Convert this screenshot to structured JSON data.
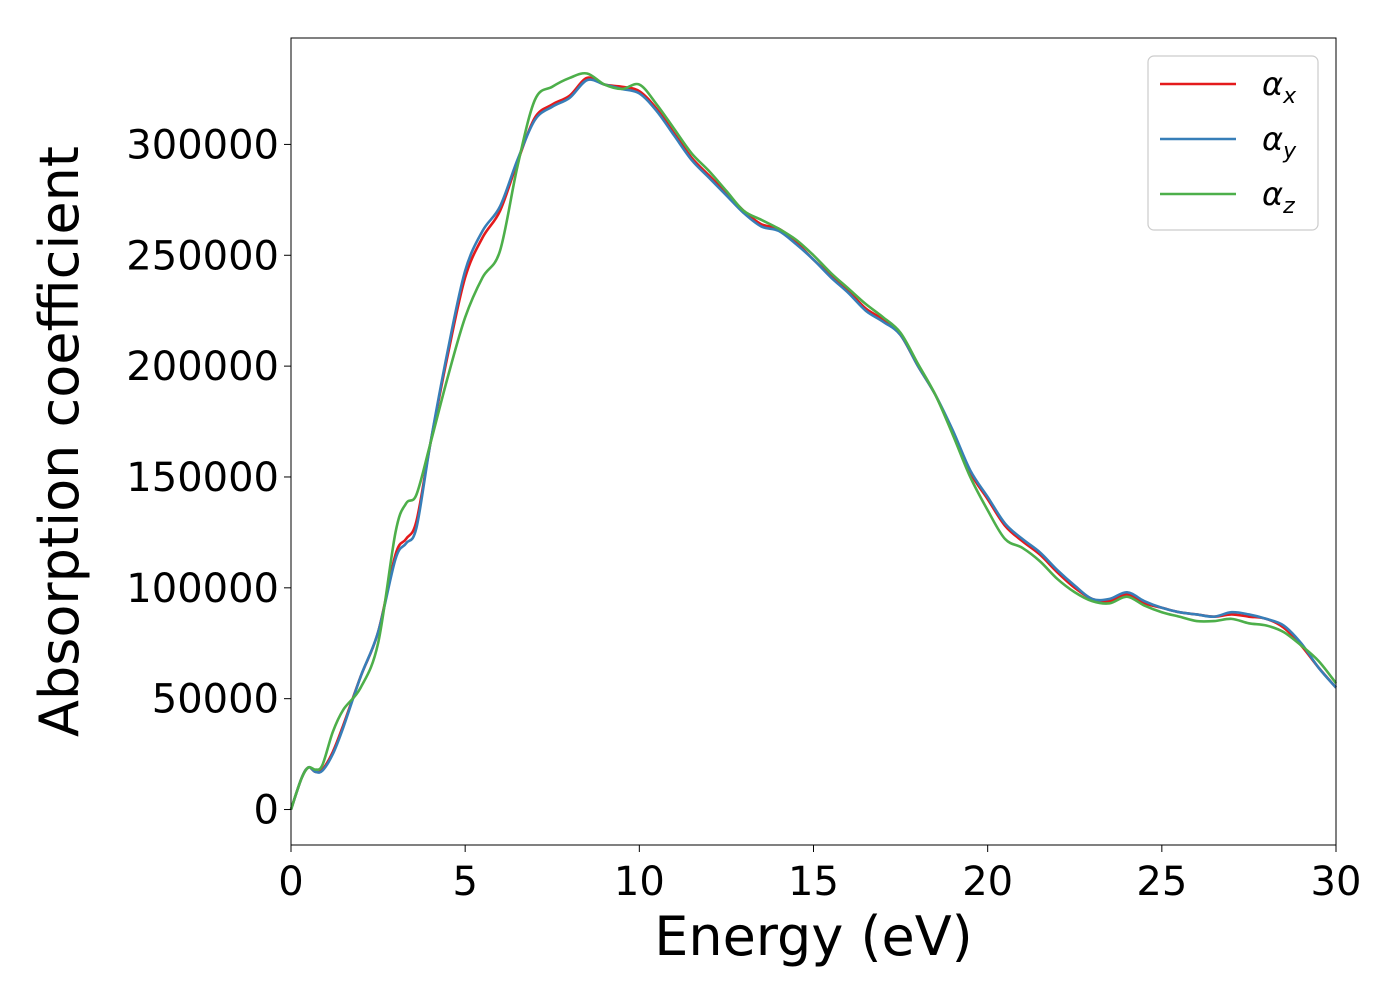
{
  "chart_data": {
    "type": "line",
    "xlabel": "Energy (eV)",
    "ylabel": "Absorption coefficient",
    "xlim": [
      0,
      30
    ],
    "ylim": [
      -16000,
      348000
    ],
    "xticks": [
      0,
      5,
      10,
      15,
      20,
      25,
      30
    ],
    "xtick_labels": [
      "0",
      "5",
      "10",
      "15",
      "20",
      "25",
      "30"
    ],
    "yticks": [
      0,
      50000,
      100000,
      150000,
      200000,
      250000,
      300000
    ],
    "ytick_labels": [
      "0",
      "50000",
      "100000",
      "150000",
      "200000",
      "250000",
      "300000"
    ],
    "grid": false,
    "legend_position": "top-right",
    "series": [
      {
        "name": "α_x",
        "legend_symbol": "α",
        "legend_subscript": "x",
        "color": "#e41a1c",
        "x": [
          0,
          0.3,
          0.5,
          0.7,
          0.9,
          1.2,
          1.5,
          2.0,
          2.5,
          3.0,
          3.3,
          3.6,
          4.0,
          4.5,
          5.0,
          5.5,
          6.0,
          6.5,
          7.0,
          7.5,
          8.0,
          8.5,
          9.0,
          9.5,
          10.0,
          10.5,
          11.0,
          11.5,
          12.0,
          12.5,
          13.0,
          13.5,
          14.0,
          14.5,
          15.0,
          15.5,
          16.0,
          16.5,
          17.0,
          17.5,
          18.0,
          18.5,
          19.0,
          19.5,
          20.0,
          20.5,
          21.0,
          21.5,
          22.0,
          22.5,
          23.0,
          23.5,
          24.0,
          24.5,
          25.0,
          25.5,
          26.0,
          26.5,
          27.0,
          27.5,
          28.0,
          28.5,
          29.0,
          29.5,
          30.0
        ],
        "values": [
          0,
          14000,
          19000,
          17000,
          18000,
          26000,
          38000,
          60000,
          80000,
          115000,
          122000,
          130000,
          165000,
          205000,
          240000,
          258000,
          270000,
          292000,
          312000,
          318000,
          322000,
          330000,
          327000,
          326000,
          324000,
          316000,
          305000,
          294000,
          286000,
          278000,
          270000,
          264000,
          262000,
          256000,
          248000,
          241000,
          234000,
          226000,
          221000,
          214000,
          200000,
          187000,
          170000,
          152000,
          140000,
          128000,
          121000,
          115000,
          107000,
          100000,
          95000,
          94000,
          97000,
          93000,
          91000,
          89000,
          88000,
          87000,
          88000,
          87000,
          86000,
          82000,
          74000,
          64000,
          55000
        ]
      },
      {
        "name": "α_y",
        "legend_symbol": "α",
        "legend_subscript": "y",
        "color": "#377eb8",
        "x": [
          0,
          0.3,
          0.5,
          0.7,
          0.9,
          1.2,
          1.5,
          2.0,
          2.5,
          3.0,
          3.3,
          3.6,
          4.0,
          4.5,
          5.0,
          5.5,
          6.0,
          6.5,
          7.0,
          7.5,
          8.0,
          8.5,
          9.0,
          9.5,
          10.0,
          10.5,
          11.0,
          11.5,
          12.0,
          12.5,
          13.0,
          13.5,
          14.0,
          14.5,
          15.0,
          15.5,
          16.0,
          16.5,
          17.0,
          17.5,
          18.0,
          18.5,
          19.0,
          19.5,
          20.0,
          20.5,
          21.0,
          21.5,
          22.0,
          22.5,
          23.0,
          23.5,
          24.0,
          24.5,
          25.0,
          25.5,
          26.0,
          26.5,
          27.0,
          27.5,
          28.0,
          28.5,
          29.0,
          29.5,
          30.0
        ],
        "values": [
          0,
          14000,
          19000,
          17000,
          17500,
          25000,
          37000,
          60000,
          80000,
          113000,
          120000,
          127000,
          165000,
          207000,
          243000,
          261000,
          272000,
          293000,
          311000,
          317000,
          321000,
          329000,
          327000,
          325000,
          323000,
          315000,
          304000,
          293000,
          285000,
          277000,
          269000,
          263000,
          261000,
          255000,
          248000,
          240000,
          233000,
          225000,
          220000,
          214000,
          200000,
          187000,
          171000,
          153000,
          141000,
          129000,
          122000,
          116000,
          108000,
          101000,
          95000,
          95000,
          98000,
          94000,
          91000,
          89000,
          88000,
          87000,
          89000,
          88000,
          86000,
          83000,
          75000,
          64000,
          55000
        ]
      },
      {
        "name": "α_z",
        "legend_symbol": "α",
        "legend_subscript": "z",
        "color": "#4daf4a",
        "x": [
          0,
          0.3,
          0.5,
          0.7,
          0.9,
          1.2,
          1.5,
          2.0,
          2.5,
          3.0,
          3.3,
          3.6,
          4.0,
          4.5,
          5.0,
          5.5,
          6.0,
          6.5,
          7.0,
          7.5,
          8.0,
          8.5,
          9.0,
          9.5,
          10.0,
          10.5,
          11.0,
          11.5,
          12.0,
          12.5,
          13.0,
          13.5,
          14.0,
          14.5,
          15.0,
          15.5,
          16.0,
          16.5,
          17.0,
          17.5,
          18.0,
          18.5,
          19.0,
          19.5,
          20.0,
          20.5,
          21.0,
          21.5,
          22.0,
          22.5,
          23.0,
          23.5,
          24.0,
          24.5,
          25.0,
          25.5,
          26.0,
          26.5,
          27.0,
          27.5,
          28.0,
          28.5,
          29.0,
          29.5,
          30.0
        ],
        "values": [
          0,
          14000,
          19000,
          18000,
          20000,
          35000,
          45000,
          55000,
          75000,
          125000,
          138000,
          142000,
          165000,
          195000,
          222000,
          240000,
          252000,
          290000,
          320000,
          326000,
          330000,
          332000,
          327000,
          325000,
          327000,
          318000,
          307000,
          296000,
          288000,
          279000,
          270000,
          266000,
          262000,
          257000,
          250000,
          242000,
          235000,
          228000,
          222000,
          215000,
          201000,
          187000,
          169000,
          150000,
          135000,
          122000,
          118000,
          112000,
          104000,
          98000,
          94000,
          93000,
          96000,
          92000,
          89000,
          87000,
          85000,
          85000,
          86000,
          84000,
          83000,
          80000,
          74000,
          67000,
          57000
        ]
      }
    ]
  }
}
